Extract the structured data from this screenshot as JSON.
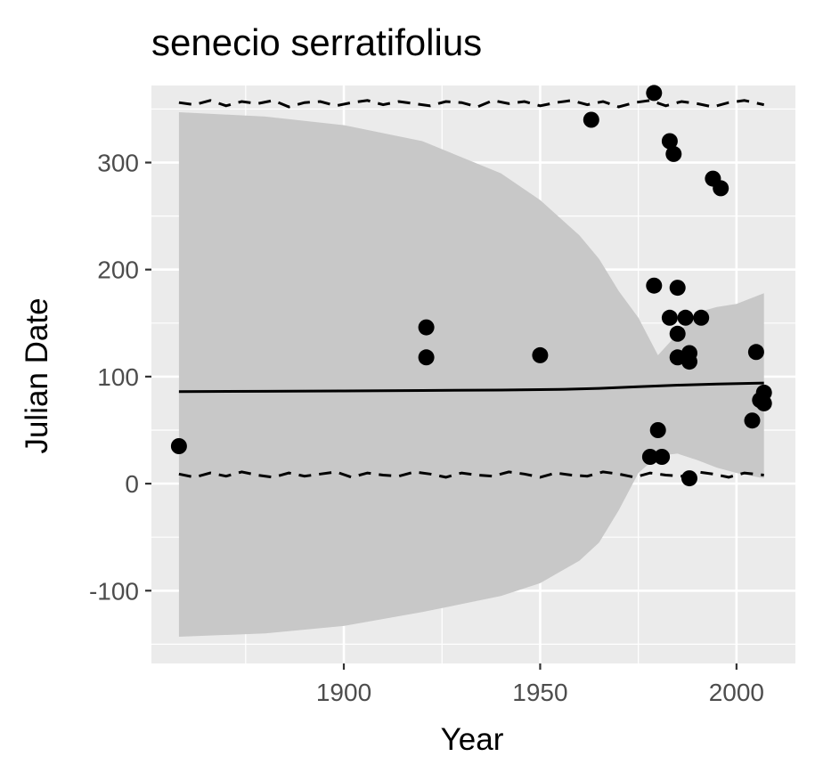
{
  "chart_data": {
    "type": "scatter",
    "title": "senecio serratifolius",
    "xlabel": "Year",
    "ylabel": "Julian Date",
    "xlim": [
      1851,
      2015
    ],
    "ylim": [
      -168,
      372
    ],
    "x_ticks": [
      1900,
      1950,
      2000
    ],
    "x_tick_labels": [
      "1900",
      "1950",
      "2000"
    ],
    "y_ticks": [
      -100,
      0,
      100,
      200,
      300
    ],
    "y_tick_labels": [
      "-100",
      "0",
      "100",
      "200",
      "300"
    ],
    "grid": true,
    "legend": "none",
    "colors": {
      "panel": "#ebebeb",
      "grid": "#ffffff",
      "ribbon": "#c8c8c8",
      "points": "#000000",
      "lines": "#000000"
    },
    "points": [
      {
        "x": 1858,
        "y": 35
      },
      {
        "x": 1921,
        "y": 146
      },
      {
        "x": 1921,
        "y": 118
      },
      {
        "x": 1950,
        "y": 120
      },
      {
        "x": 1963,
        "y": 340
      },
      {
        "x": 1978,
        "y": 25
      },
      {
        "x": 1979,
        "y": 365
      },
      {
        "x": 1979,
        "y": 185
      },
      {
        "x": 1980,
        "y": 50
      },
      {
        "x": 1981,
        "y": 25
      },
      {
        "x": 1983,
        "y": 320
      },
      {
        "x": 1983,
        "y": 155
      },
      {
        "x": 1984,
        "y": 308
      },
      {
        "x": 1985,
        "y": 183
      },
      {
        "x": 1985,
        "y": 140
      },
      {
        "x": 1985,
        "y": 118
      },
      {
        "x": 1987,
        "y": 155
      },
      {
        "x": 1988,
        "y": 122
      },
      {
        "x": 1988,
        "y": 114
      },
      {
        "x": 1988,
        "y": 5
      },
      {
        "x": 1991,
        "y": 155
      },
      {
        "x": 1994,
        "y": 285
      },
      {
        "x": 1996,
        "y": 276
      },
      {
        "x": 2004,
        "y": 59
      },
      {
        "x": 2005,
        "y": 123
      },
      {
        "x": 2006,
        "y": 78
      },
      {
        "x": 2007,
        "y": 85
      },
      {
        "x": 2007,
        "y": 75
      }
    ],
    "fit_line": {
      "x": [
        1858,
        1880,
        1900,
        1920,
        1940,
        1955,
        1965,
        1975,
        1985,
        1995,
        2007
      ],
      "y": [
        86,
        86.3,
        86.6,
        87,
        87.4,
        88,
        89,
        90.5,
        92,
        93,
        94
      ]
    },
    "ribbon": {
      "x": [
        1858,
        1880,
        1900,
        1920,
        1940,
        1950,
        1960,
        1965,
        1970,
        1975,
        1980,
        1985,
        1990,
        1995,
        2000,
        2007
      ],
      "upper": [
        347,
        343,
        335,
        320,
        290,
        265,
        232,
        210,
        180,
        155,
        120,
        140,
        160,
        165,
        168,
        178
      ],
      "lower": [
        -143,
        -140,
        -133,
        -120,
        -105,
        -93,
        -72,
        -55,
        -25,
        10,
        26,
        28,
        22,
        15,
        10,
        5
      ]
    },
    "upper_dashed": {
      "x": [
        1858,
        1862,
        1866,
        1870,
        1874,
        1878,
        1882,
        1886,
        1890,
        1894,
        1898,
        1902,
        1906,
        1910,
        1914,
        1918,
        1922,
        1926,
        1930,
        1934,
        1938,
        1942,
        1946,
        1950,
        1954,
        1958,
        1962,
        1966,
        1970,
        1974,
        1978,
        1982,
        1986,
        1990,
        1994,
        1998,
        2002,
        2007
      ],
      "y": [
        356,
        354,
        358,
        353,
        357,
        355,
        358,
        352,
        356,
        357,
        353,
        356,
        358,
        354,
        357,
        355,
        353,
        357,
        356,
        352,
        358,
        355,
        357,
        353,
        356,
        358,
        354,
        357,
        352,
        356,
        358,
        353,
        357,
        355,
        352,
        356,
        358,
        354
      ]
    },
    "lower_dashed": {
      "x": [
        1858,
        1862,
        1866,
        1870,
        1874,
        1878,
        1882,
        1886,
        1890,
        1894,
        1898,
        1902,
        1906,
        1910,
        1914,
        1918,
        1922,
        1926,
        1930,
        1934,
        1938,
        1942,
        1946,
        1950,
        1954,
        1958,
        1962,
        1966,
        1970,
        1974,
        1978,
        1982,
        1986,
        1990,
        1994,
        1998,
        2002,
        2007
      ],
      "y": [
        9,
        6,
        10,
        7,
        11,
        8,
        6,
        10,
        7,
        9,
        11,
        6,
        10,
        8,
        7,
        11,
        9,
        6,
        10,
        8,
        7,
        11,
        9,
        6,
        10,
        8,
        7,
        11,
        9,
        6,
        10,
        8,
        7,
        11,
        9,
        6,
        10,
        8
      ]
    }
  }
}
